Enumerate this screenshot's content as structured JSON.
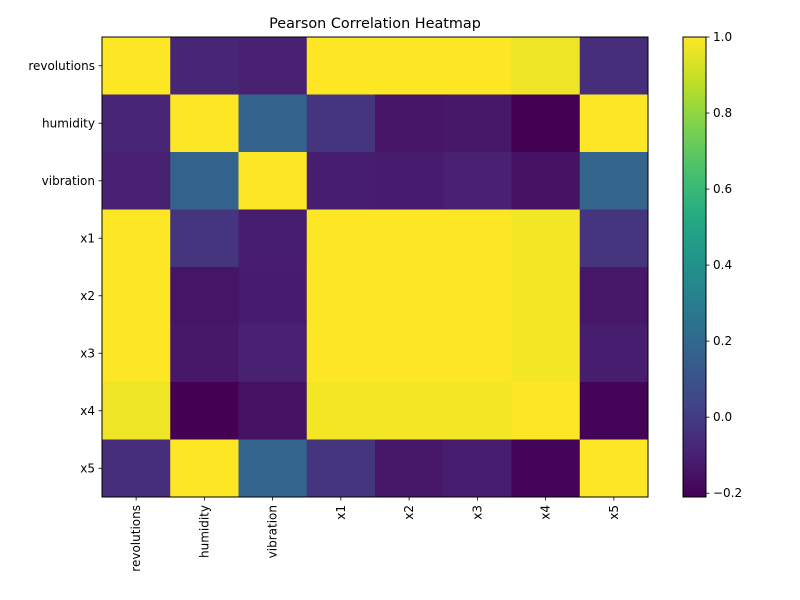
{
  "chart_data": {
    "type": "heatmap",
    "title": "Pearson Correlation Heatmap",
    "xlabel": "",
    "ylabel": "",
    "colormap": "viridis",
    "x_categories": [
      "revolutions",
      "humidity",
      "vibration",
      "x1",
      "x2",
      "x3",
      "x4",
      "x5"
    ],
    "y_categories": [
      "revolutions",
      "humidity",
      "vibration",
      "x1",
      "x2",
      "x3",
      "x4",
      "x5"
    ],
    "matrix": [
      [
        1.0,
        -0.08,
        -0.1,
        1.0,
        1.0,
        1.0,
        0.97,
        -0.05
      ],
      [
        -0.08,
        1.0,
        0.17,
        -0.03,
        -0.14,
        -0.13,
        -0.21,
        1.0
      ],
      [
        -0.1,
        0.17,
        1.0,
        -0.11,
        -0.12,
        -0.1,
        -0.15,
        0.18
      ],
      [
        1.0,
        -0.03,
        -0.11,
        1.0,
        1.0,
        1.0,
        0.98,
        -0.03
      ],
      [
        1.0,
        -0.14,
        -0.12,
        1.0,
        1.0,
        1.0,
        0.98,
        -0.13
      ],
      [
        1.0,
        -0.13,
        -0.1,
        1.0,
        1.0,
        1.0,
        0.98,
        -0.11
      ],
      [
        0.97,
        -0.21,
        -0.15,
        0.98,
        0.98,
        0.98,
        1.0,
        -0.2
      ],
      [
        -0.05,
        1.0,
        0.18,
        -0.03,
        -0.13,
        -0.11,
        -0.2,
        1.0
      ]
    ],
    "vmin": -0.21,
    "vmax": 1.0,
    "colorbar_ticks": [
      "1.0",
      "0.8",
      "0.6",
      "0.4",
      "0.2",
      "0.0",
      "−0.2"
    ],
    "colorbar_tick_values": [
      1.0,
      0.8,
      0.6,
      0.4,
      0.2,
      0.0,
      -0.2
    ]
  }
}
